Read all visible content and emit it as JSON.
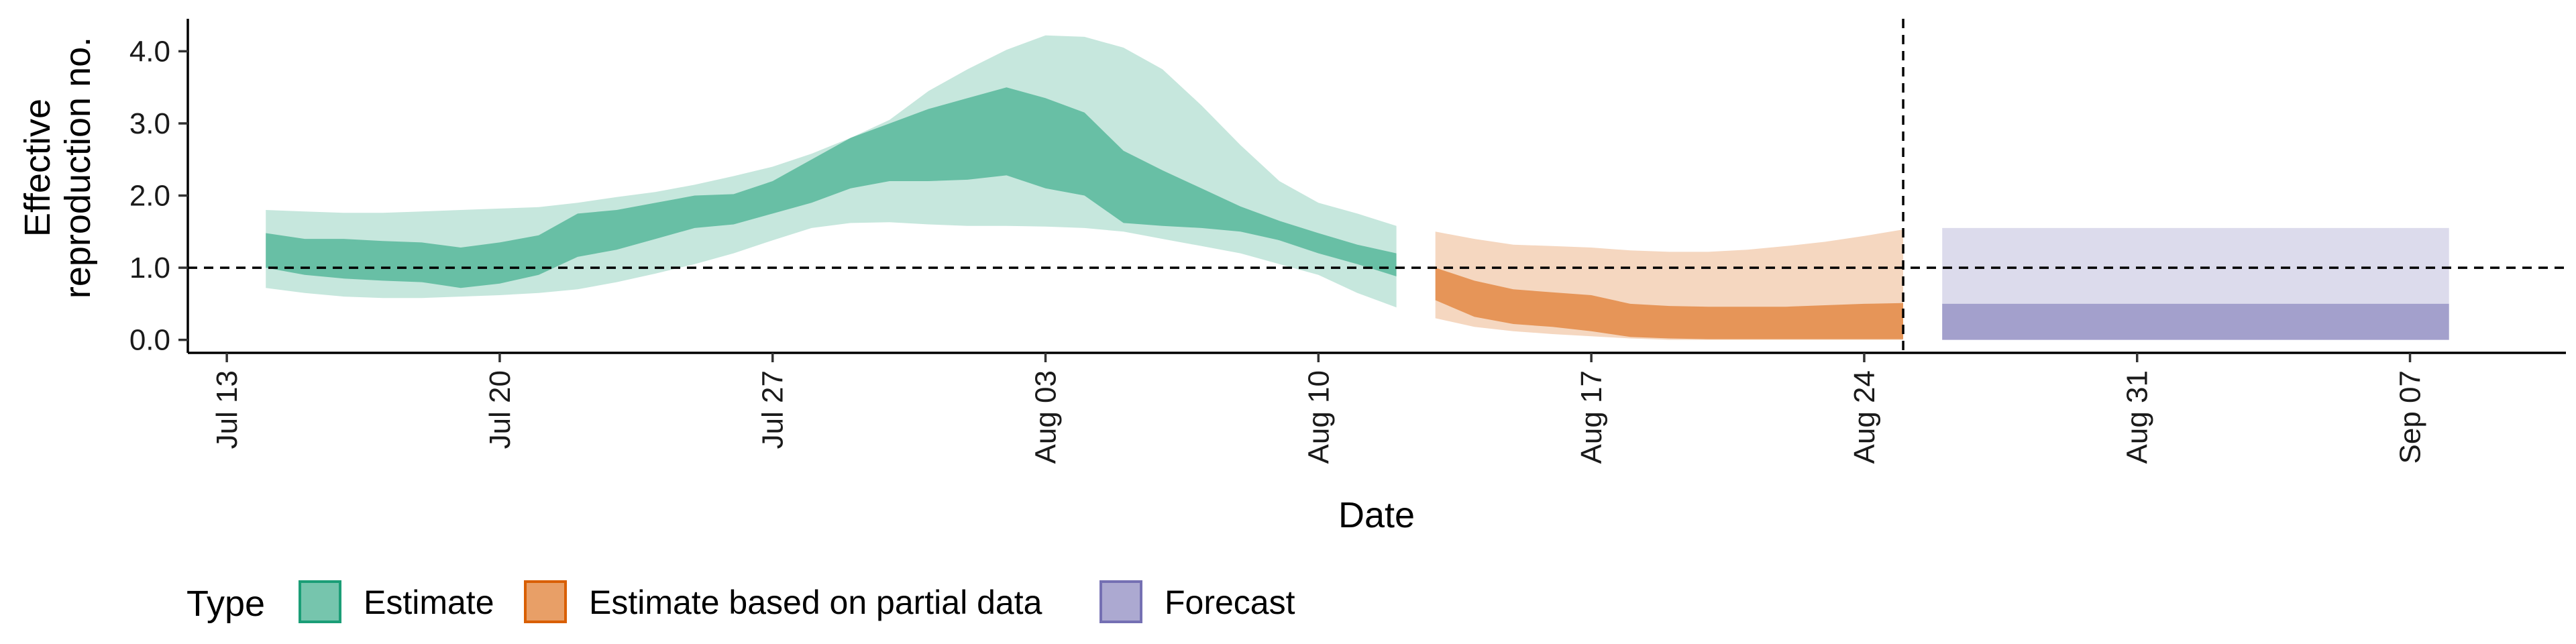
{
  "chart_data": {
    "type": "area",
    "title": "",
    "xlabel": "Date",
    "ylabel_lines": [
      "Effective",
      "reproduction no."
    ],
    "x_tick_labels": [
      "Jul 13",
      "Jul 20",
      "Jul 27",
      "Aug 03",
      "Aug 10",
      "Aug 17",
      "Aug 24",
      "Aug 31",
      "Sep 07"
    ],
    "x_tick_dates": [
      "2020-07-13",
      "2020-07-20",
      "2020-07-27",
      "2020-08-03",
      "2020-08-10",
      "2020-08-17",
      "2020-08-24",
      "2020-08-31",
      "2020-09-07"
    ],
    "x_range": [
      "2020-07-12",
      "2020-09-11"
    ],
    "y_ticks": [
      0.0,
      1.0,
      2.0,
      3.0,
      4.0
    ],
    "y_tick_labels": [
      "0.0",
      "1.0",
      "2.0",
      "3.0",
      "4.0"
    ],
    "ylim": [
      -0.18,
      4.45
    ],
    "reference_lines": {
      "horizontal_y": 1.0,
      "vertical_x": "2020-08-25"
    },
    "grid": false,
    "legend": {
      "title": "Type",
      "position": "bottom",
      "entries": [
        "Estimate",
        "Estimate based on partial data",
        "Forecast"
      ]
    },
    "colors": {
      "Estimate": "#1b9e77",
      "Estimate based on partial data": "#d95f02",
      "Forecast": "#7570b3"
    },
    "series": [
      {
        "name": "Estimate",
        "dates": [
          "2020-07-14",
          "2020-07-15",
          "2020-07-16",
          "2020-07-17",
          "2020-07-18",
          "2020-07-19",
          "2020-07-20",
          "2020-07-21",
          "2020-07-22",
          "2020-07-23",
          "2020-07-24",
          "2020-07-25",
          "2020-07-26",
          "2020-07-27",
          "2020-07-28",
          "2020-07-29",
          "2020-07-30",
          "2020-07-31",
          "2020-08-01",
          "2020-08-02",
          "2020-08-03",
          "2020-08-04",
          "2020-08-05",
          "2020-08-06",
          "2020-08-07",
          "2020-08-08",
          "2020-08-09",
          "2020-08-10",
          "2020-08-11",
          "2020-08-12"
        ],
        "lower_90": [
          0.72,
          0.65,
          0.6,
          0.58,
          0.58,
          0.6,
          0.62,
          0.65,
          0.7,
          0.8,
          0.92,
          1.05,
          1.2,
          1.38,
          1.55,
          1.62,
          1.63,
          1.6,
          1.58,
          1.58,
          1.57,
          1.55,
          1.5,
          1.4,
          1.3,
          1.2,
          1.05,
          0.9,
          0.65,
          0.45
        ],
        "upper_90": [
          1.8,
          1.78,
          1.76,
          1.76,
          1.78,
          1.8,
          1.82,
          1.84,
          1.9,
          1.98,
          2.05,
          2.15,
          2.27,
          2.4,
          2.58,
          2.8,
          3.05,
          3.45,
          3.75,
          4.02,
          4.22,
          4.2,
          4.05,
          3.75,
          3.25,
          2.7,
          2.2,
          1.9,
          1.75,
          1.58
        ],
        "lower_50": [
          1.0,
          0.9,
          0.85,
          0.82,
          0.8,
          0.72,
          0.78,
          0.9,
          1.15,
          1.25,
          1.4,
          1.55,
          1.6,
          1.75,
          1.9,
          2.1,
          2.2,
          2.2,
          2.22,
          2.28,
          2.1,
          2.0,
          1.62,
          1.58,
          1.55,
          1.5,
          1.38,
          1.2,
          1.05,
          0.88
        ],
        "upper_50": [
          1.48,
          1.4,
          1.4,
          1.37,
          1.35,
          1.28,
          1.35,
          1.45,
          1.75,
          1.8,
          1.9,
          2.0,
          2.02,
          2.2,
          2.5,
          2.8,
          3.0,
          3.2,
          3.35,
          3.5,
          3.35,
          3.15,
          2.62,
          2.35,
          2.1,
          1.85,
          1.65,
          1.48,
          1.32,
          1.2
        ]
      },
      {
        "name": "Estimate based on partial data",
        "dates": [
          "2020-08-13",
          "2020-08-14",
          "2020-08-15",
          "2020-08-16",
          "2020-08-17",
          "2020-08-18",
          "2020-08-19",
          "2020-08-20",
          "2020-08-21",
          "2020-08-22",
          "2020-08-23",
          "2020-08-24",
          "2020-08-25"
        ],
        "lower_90": [
          0.3,
          0.18,
          0.12,
          0.08,
          0.05,
          0.02,
          0.0,
          0.0,
          0.0,
          0.0,
          0.0,
          0.0,
          0.0
        ],
        "upper_90": [
          1.5,
          1.4,
          1.32,
          1.3,
          1.28,
          1.24,
          1.22,
          1.22,
          1.25,
          1.3,
          1.36,
          1.44,
          1.53
        ],
        "lower_50": [
          0.55,
          0.32,
          0.22,
          0.18,
          0.12,
          0.04,
          0.02,
          0.01,
          0.01,
          0.01,
          0.01,
          0.01,
          0.01
        ],
        "upper_50": [
          1.0,
          0.82,
          0.7,
          0.66,
          0.62,
          0.5,
          0.47,
          0.46,
          0.46,
          0.46,
          0.48,
          0.5,
          0.51
        ]
      },
      {
        "name": "Forecast",
        "dates": [
          "2020-08-26",
          "2020-09-08"
        ],
        "lower_90": [
          0.0,
          0.0
        ],
        "upper_90": [
          1.55,
          1.55
        ],
        "lower_50": [
          0.0,
          0.0
        ],
        "upper_50": [
          0.5,
          0.5
        ]
      }
    ]
  }
}
